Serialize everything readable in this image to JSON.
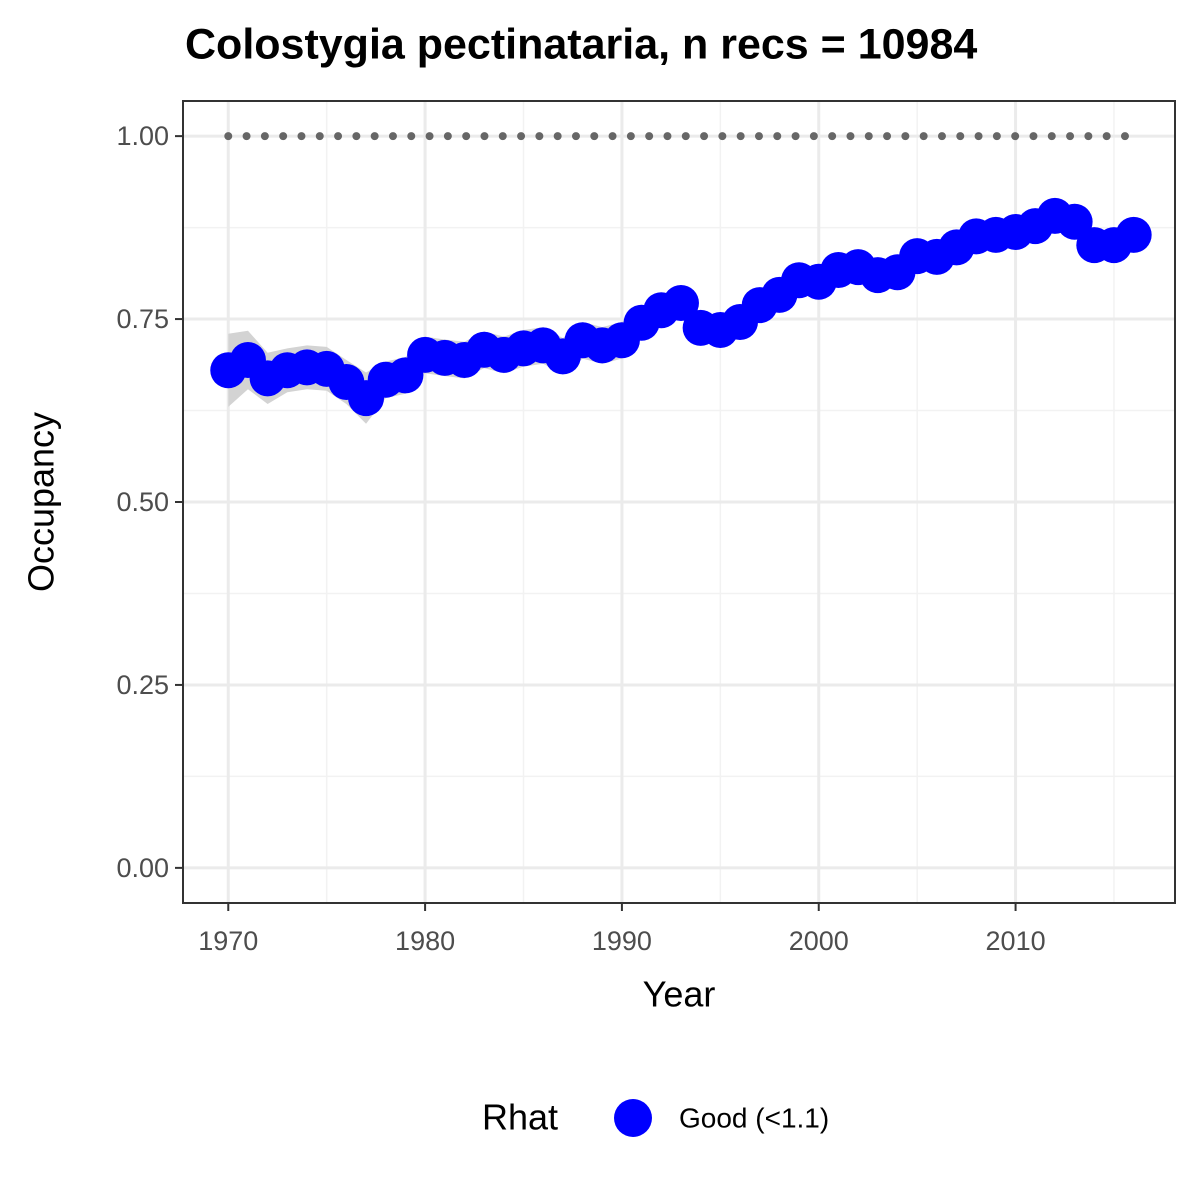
{
  "chart_data": {
    "type": "line",
    "title": "Colostygia pectinataria, n recs = 10984",
    "x_label": "Year",
    "y_label": "Occupancy",
    "legend_title": "Rhat",
    "x": [
      1970,
      1971,
      1972,
      1973,
      1974,
      1975,
      1976,
      1977,
      1978,
      1979,
      1980,
      1981,
      1982,
      1983,
      1984,
      1985,
      1986,
      1987,
      1988,
      1989,
      1990,
      1991,
      1992,
      1993,
      1994,
      1995,
      1996,
      1997,
      1998,
      1999,
      2000,
      2001,
      2002,
      2003,
      2004,
      2005,
      2006,
      2007,
      2008,
      2009,
      2010,
      2011,
      2012,
      2013,
      2014,
      2015,
      2016
    ],
    "series": [
      {
        "name": "Good (<1.1)",
        "color": "#0000ff",
        "values": [
          0.68,
          0.694,
          0.669,
          0.68,
          0.684,
          0.682,
          0.664,
          0.642,
          0.667,
          0.673,
          0.701,
          0.697,
          0.694,
          0.708,
          0.701,
          0.71,
          0.714,
          0.699,
          0.721,
          0.714,
          0.721,
          0.745,
          0.762,
          0.772,
          0.738,
          0.735,
          0.746,
          0.769,
          0.783,
          0.803,
          0.801,
          0.817,
          0.821,
          0.81,
          0.814,
          0.836,
          0.835,
          0.848,
          0.863,
          0.865,
          0.869,
          0.877,
          0.891,
          0.883,
          0.851,
          0.851,
          0.865
        ]
      }
    ],
    "band": {
      "color": "#d3d3d3",
      "lower": [
        0.63,
        0.654,
        0.634,
        0.65,
        0.654,
        0.652,
        0.634,
        0.607,
        0.642,
        0.648,
        0.676,
        0.672,
        0.669,
        0.683,
        0.676,
        0.685,
        0.689,
        0.674,
        0.696,
        0.689,
        0.696,
        0.725,
        0.742,
        0.752,
        0.718,
        0.715,
        0.726,
        0.749,
        0.763,
        0.783,
        0.781,
        0.797,
        0.801,
        0.79,
        0.794,
        0.816,
        0.815,
        0.828,
        0.843,
        0.845,
        0.849,
        0.857,
        0.871,
        0.863,
        0.831,
        0.831,
        0.845
      ],
      "upper": [
        0.73,
        0.734,
        0.704,
        0.71,
        0.714,
        0.712,
        0.694,
        0.677,
        0.692,
        0.698,
        0.726,
        0.722,
        0.719,
        0.733,
        0.726,
        0.735,
        0.739,
        0.724,
        0.746,
        0.739,
        0.746,
        0.765,
        0.782,
        0.792,
        0.758,
        0.755,
        0.766,
        0.789,
        0.803,
        0.823,
        0.821,
        0.837,
        0.841,
        0.83,
        0.834,
        0.856,
        0.855,
        0.868,
        0.883,
        0.885,
        0.889,
        0.897,
        0.911,
        0.903,
        0.871,
        0.871,
        0.885
      ]
    },
    "reference_line": {
      "y": 1,
      "x": [
        1970,
        2016
      ],
      "color": "#666666"
    },
    "xlim": [
      1967.7,
      2018.1
    ],
    "ylim": [
      -0.048,
      1.048
    ],
    "xticks": [
      1970,
      1980,
      1990,
      2000,
      2010
    ],
    "xminor": [
      1975,
      1985,
      1995,
      2005,
      2015
    ],
    "yticks": [
      {
        "value": 0,
        "label": "0.00"
      },
      {
        "value": 0.25,
        "label": "0.25"
      },
      {
        "value": 0.5,
        "label": "0.50"
      },
      {
        "value": 0.75,
        "label": "0.75"
      },
      {
        "value": 1,
        "label": "1.00"
      }
    ],
    "yminor": [
      0.125,
      0.375,
      0.625,
      0.875
    ],
    "grid": true
  }
}
